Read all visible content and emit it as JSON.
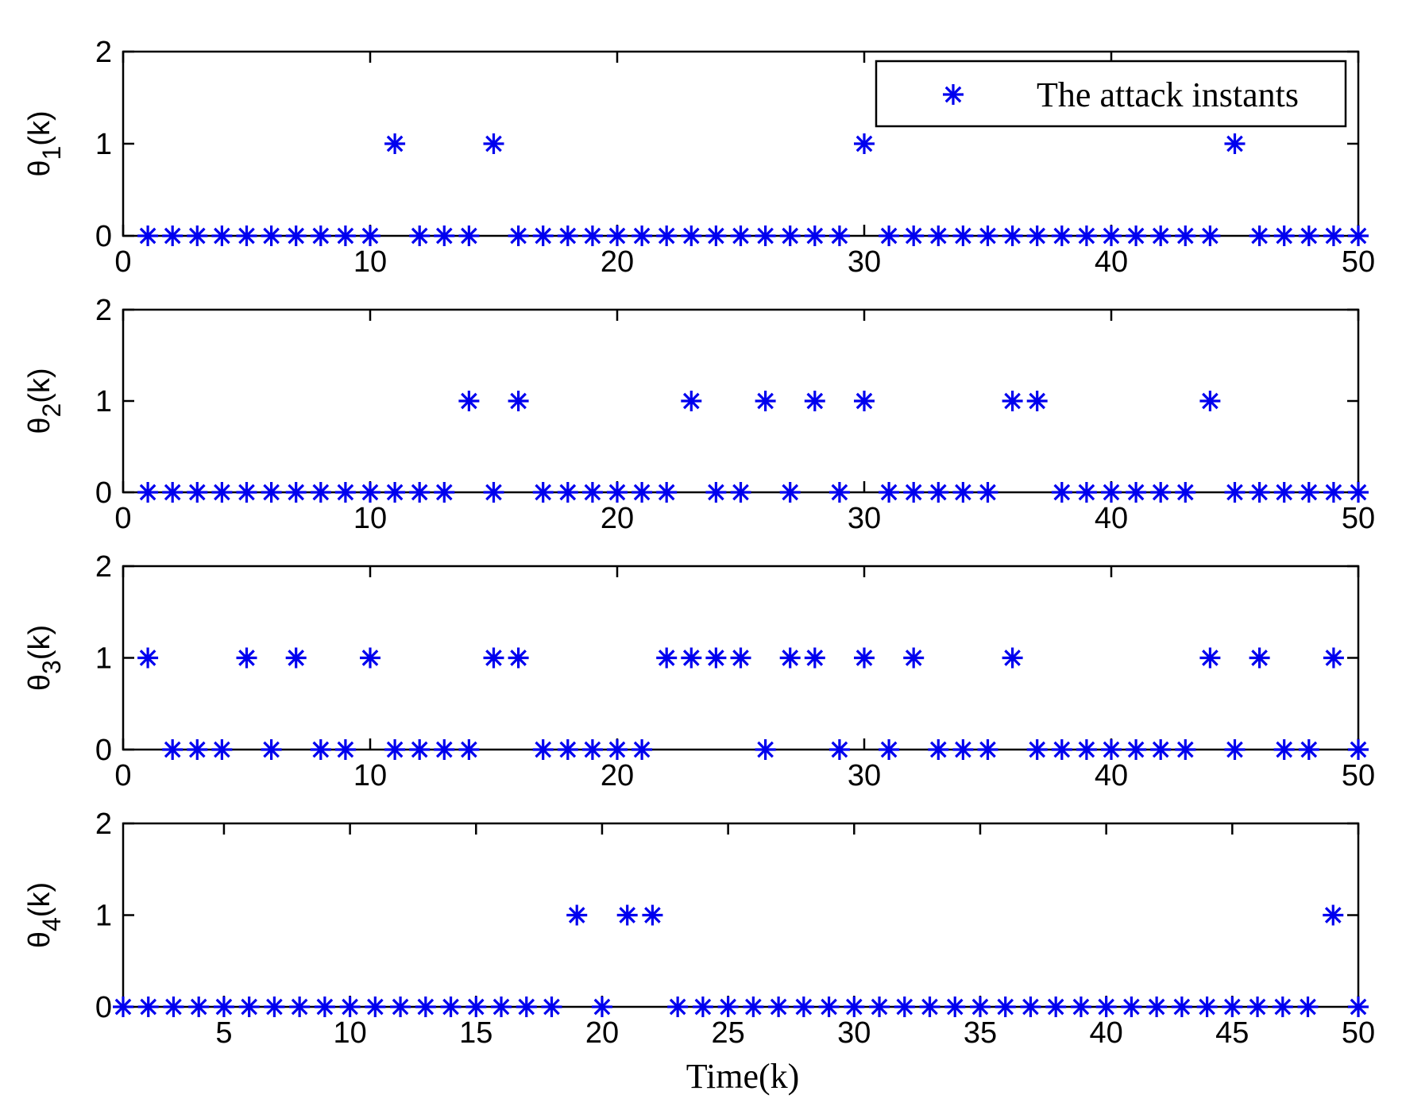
{
  "chart_data": [
    {
      "type": "scatter",
      "ylabel": "θ1(k)",
      "ylabel_main": "θ",
      "ylabel_sub": "1",
      "ylabel_tail": "(k)",
      "xlim": [
        0,
        50
      ],
      "ylim": [
        0,
        2
      ],
      "xticks": [
        "0",
        "10",
        "20",
        "30",
        "40",
        "50"
      ],
      "yticks": [
        "0",
        "1",
        "2"
      ],
      "legend": "The attack instants",
      "legend_position": "top-right",
      "x": [
        1,
        2,
        3,
        4,
        5,
        6,
        7,
        8,
        9,
        10,
        11,
        12,
        13,
        14,
        15,
        16,
        17,
        18,
        19,
        20,
        21,
        22,
        23,
        24,
        25,
        26,
        27,
        28,
        29,
        30,
        31,
        32,
        33,
        34,
        35,
        36,
        37,
        38,
        39,
        40,
        41,
        42,
        43,
        44,
        45,
        46,
        47,
        48,
        49,
        50
      ],
      "y": [
        0,
        0,
        0,
        0,
        0,
        0,
        0,
        0,
        0,
        0,
        1,
        0,
        0,
        0,
        1,
        0,
        0,
        0,
        0,
        0,
        0,
        0,
        0,
        0,
        0,
        0,
        0,
        0,
        0,
        1,
        0,
        0,
        0,
        0,
        0,
        0,
        0,
        0,
        0,
        0,
        0,
        0,
        0,
        0,
        1,
        0,
        0,
        0,
        0,
        0
      ]
    },
    {
      "type": "scatter",
      "ylabel": "θ2(k)",
      "ylabel_main": "θ",
      "ylabel_sub": "2",
      "ylabel_tail": "(k)",
      "xlim": [
        0,
        50
      ],
      "ylim": [
        0,
        2
      ],
      "xticks": [
        "0",
        "10",
        "20",
        "30",
        "40",
        "50"
      ],
      "yticks": [
        "0",
        "1",
        "2"
      ],
      "x": [
        1,
        2,
        3,
        4,
        5,
        6,
        7,
        8,
        9,
        10,
        11,
        12,
        13,
        14,
        15,
        16,
        17,
        18,
        19,
        20,
        21,
        22,
        23,
        24,
        25,
        26,
        27,
        28,
        29,
        30,
        31,
        32,
        33,
        34,
        35,
        36,
        37,
        38,
        39,
        40,
        41,
        42,
        43,
        44,
        45,
        46,
        47,
        48,
        49,
        50
      ],
      "y": [
        0,
        0,
        0,
        0,
        0,
        0,
        0,
        0,
        0,
        0,
        0,
        0,
        0,
        1,
        0,
        1,
        0,
        0,
        0,
        0,
        0,
        0,
        1,
        0,
        0,
        1,
        0,
        1,
        0,
        1,
        0,
        0,
        0,
        0,
        0,
        1,
        1,
        0,
        0,
        0,
        0,
        0,
        0,
        1,
        0,
        0,
        0,
        0,
        0,
        0
      ]
    },
    {
      "type": "scatter",
      "ylabel": "θ3(k)",
      "ylabel_main": "θ",
      "ylabel_sub": "3",
      "ylabel_tail": "(k)",
      "xlim": [
        0,
        50
      ],
      "ylim": [
        0,
        2
      ],
      "xticks": [
        "0",
        "10",
        "20",
        "30",
        "40",
        "50"
      ],
      "yticks": [
        "0",
        "1",
        "2"
      ],
      "x": [
        1,
        2,
        3,
        4,
        5,
        6,
        7,
        8,
        9,
        10,
        11,
        12,
        13,
        14,
        15,
        16,
        17,
        18,
        19,
        20,
        21,
        22,
        23,
        24,
        25,
        26,
        27,
        28,
        29,
        30,
        31,
        32,
        33,
        34,
        35,
        36,
        37,
        38,
        39,
        40,
        41,
        42,
        43,
        44,
        45,
        46,
        47,
        48,
        49,
        50
      ],
      "y": [
        1,
        0,
        0,
        0,
        1,
        0,
        1,
        0,
        0,
        1,
        0,
        0,
        0,
        0,
        1,
        1,
        0,
        0,
        0,
        0,
        0,
        1,
        1,
        1,
        1,
        0,
        1,
        1,
        0,
        1,
        0,
        1,
        0,
        0,
        0,
        1,
        0,
        0,
        0,
        0,
        0,
        0,
        0,
        1,
        0,
        1,
        0,
        0,
        1,
        0
      ]
    },
    {
      "type": "scatter",
      "ylabel": "θ4(k)",
      "ylabel_main": "θ",
      "ylabel_sub": "4",
      "ylabel_tail": "(k)",
      "xlabel": "Time(k)",
      "xlim": [
        1,
        50
      ],
      "ylim": [
        0,
        2
      ],
      "xticks": [
        "5",
        "10",
        "15",
        "20",
        "25",
        "30",
        "35",
        "40",
        "45",
        "50"
      ],
      "yticks": [
        "0",
        "1",
        "2"
      ],
      "x": [
        1,
        2,
        3,
        4,
        5,
        6,
        7,
        8,
        9,
        10,
        11,
        12,
        13,
        14,
        15,
        16,
        17,
        18,
        19,
        20,
        21,
        22,
        23,
        24,
        25,
        26,
        27,
        28,
        29,
        30,
        31,
        32,
        33,
        34,
        35,
        36,
        37,
        38,
        39,
        40,
        41,
        42,
        43,
        44,
        45,
        46,
        47,
        48,
        49,
        50
      ],
      "y": [
        0,
        0,
        0,
        0,
        0,
        0,
        0,
        0,
        0,
        0,
        0,
        0,
        0,
        0,
        0,
        0,
        0,
        0,
        1,
        0,
        1,
        1,
        0,
        0,
        0,
        0,
        0,
        0,
        0,
        0,
        0,
        0,
        0,
        0,
        0,
        0,
        0,
        0,
        0,
        0,
        0,
        0,
        0,
        0,
        0,
        0,
        0,
        0,
        1,
        0
      ]
    }
  ],
  "style": {
    "marker_color": "#0000ee",
    "axis_color": "#000000"
  }
}
